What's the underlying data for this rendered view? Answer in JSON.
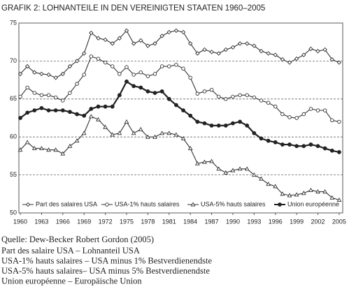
{
  "chart_data": {
    "type": "line",
    "title": "GRAFIK 2: LOHNANTEILE IN DEN VEREINIGTEN STAATEN 1960–2005",
    "x": [
      1960,
      1961,
      1962,
      1963,
      1964,
      1965,
      1966,
      1967,
      1968,
      1969,
      1970,
      1971,
      1972,
      1973,
      1974,
      1975,
      1976,
      1977,
      1978,
      1979,
      1980,
      1981,
      1982,
      1983,
      1984,
      1985,
      1986,
      1987,
      1988,
      1989,
      1990,
      1991,
      1992,
      1993,
      1994,
      1995,
      1996,
      1997,
      1998,
      1999,
      2000,
      2001,
      2002,
      2003,
      2004,
      2005
    ],
    "series": [
      {
        "name": "Part des salaires USA",
        "color": "#333",
        "marker": "diamond",
        "values": [
          68.3,
          69.3,
          68.5,
          68.3,
          68.2,
          67.8,
          68.3,
          69.3,
          70.0,
          71.0,
          73.7,
          73.0,
          72.8,
          72.3,
          73.0,
          74.0,
          72.3,
          72.7,
          72.0,
          72.3,
          73.3,
          73.8,
          74.0,
          73.8,
          72.3,
          71.0,
          71.5,
          71.2,
          71.0,
          71.5,
          71.8,
          72.3,
          72.3,
          72.0,
          71.3,
          71.0,
          70.8,
          70.2,
          69.8,
          70.3,
          70.8,
          71.6,
          71.3,
          71.5,
          70.2,
          69.8
        ]
      },
      {
        "name": "USA-1% hauts salaires",
        "color": "#333",
        "marker": "circle",
        "values": [
          65.3,
          66.5,
          65.8,
          65.5,
          65.5,
          65.2,
          64.8,
          65.8,
          67.0,
          68.2,
          70.6,
          70.3,
          69.8,
          69.3,
          68.3,
          69.2,
          68.2,
          68.5,
          68.0,
          68.3,
          69.3,
          69.3,
          69.5,
          69.0,
          67.8,
          65.7,
          66.0,
          66.2,
          65.3,
          65.0,
          65.3,
          65.5,
          65.5,
          65.2,
          64.8,
          64.5,
          64.0,
          63.0,
          62.6,
          62.5,
          63.0,
          63.7,
          63.5,
          63.5,
          62.2,
          62.0
        ]
      },
      {
        "name": "USA-5% hauts salaires",
        "color": "#333",
        "marker": "triangle",
        "values": [
          58.3,
          59.3,
          58.5,
          58.5,
          58.3,
          58.3,
          57.8,
          58.8,
          59.5,
          60.5,
          62.7,
          62.3,
          61.3,
          60.3,
          60.5,
          62.0,
          60.5,
          61.0,
          60.0,
          60.0,
          60.5,
          60.5,
          60.3,
          59.8,
          58.5,
          56.5,
          56.7,
          56.8,
          55.8,
          55.3,
          55.6,
          55.8,
          55.8,
          55.0,
          54.5,
          53.8,
          53.5,
          52.5,
          52.3,
          52.4,
          52.6,
          53.0,
          52.8,
          52.8,
          52.0,
          51.7
        ]
      },
      {
        "name": "Union européenne",
        "color": "#222",
        "marker": "dot",
        "values": [
          62.5,
          63.2,
          63.5,
          63.8,
          63.5,
          63.5,
          63.5,
          63.3,
          63.0,
          62.8,
          63.7,
          64.0,
          64.0,
          64.0,
          65.5,
          67.3,
          66.7,
          66.5,
          66.0,
          65.8,
          66.0,
          65.0,
          64.2,
          63.5,
          62.8,
          62.0,
          61.8,
          61.5,
          61.5,
          61.5,
          61.8,
          62.0,
          61.5,
          60.5,
          59.8,
          59.5,
          59.3,
          59.0,
          59.0,
          58.8,
          58.8,
          59.0,
          58.8,
          58.5,
          58.2,
          58.0
        ]
      }
    ],
    "xlim": [
      1959.8,
      2005.5
    ],
    "xticks": [
      1960,
      1963,
      1966,
      1969,
      1972,
      1975,
      1978,
      1981,
      1984,
      1987,
      1990,
      1993,
      1996,
      1999,
      2002,
      2005
    ],
    "ylim": [
      50,
      75
    ],
    "yticks": [
      50,
      55,
      60,
      65,
      70,
      75
    ],
    "grid": true,
    "legend": "bottom",
    "source": "Quelle: Dew-Becker Robert Gordon (2005)",
    "notes": [
      "Part des salaire USA – Lohnanteil USA",
      "USA-1% hauts salaires – USA minus 1% Bestverdienendste",
      "USA-5% hauts salaires– USA minus 5% Bestverdienendste",
      "Union européenne – Europäische Union"
    ]
  }
}
